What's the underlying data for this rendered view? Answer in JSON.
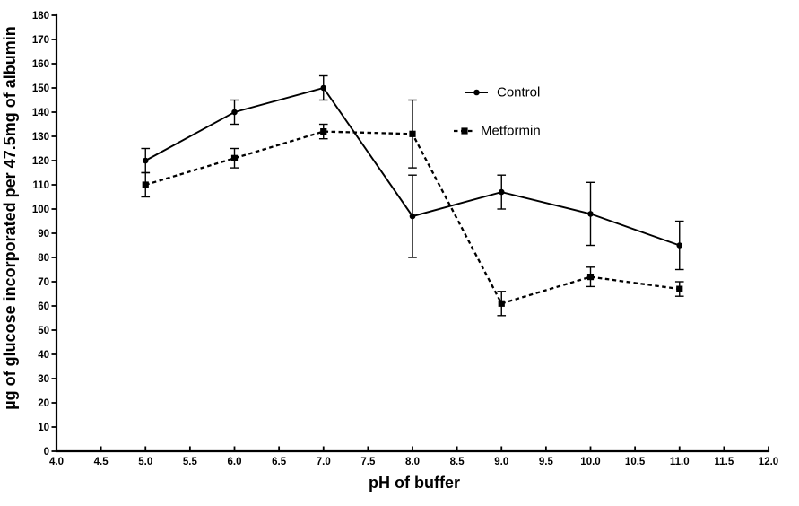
{
  "figure": {
    "background": "#ffffff",
    "ink_color": "#000000"
  },
  "chart_data": {
    "type": "line",
    "title": "",
    "xlabel": "pH of buffer",
    "ylabel": "µg of glucose incorporated per 47.5mg of albumin",
    "xlim": [
      4.0,
      12.0
    ],
    "xtick_step": 0.5,
    "ylim": [
      0,
      180
    ],
    "ytick_step": 10,
    "grid": false,
    "error_bars": true,
    "legend": {
      "position": "upper-center",
      "entries": [
        "Control",
        "Metformin"
      ]
    },
    "x": [
      5.0,
      6.0,
      7.0,
      8.0,
      9.0,
      10.0,
      11.0
    ],
    "series": [
      {
        "name": "Control",
        "marker": "circle",
        "line_style": "solid",
        "values": [
          120,
          140,
          150,
          97,
          107,
          98,
          85
        ],
        "errors": [
          5,
          5,
          5,
          17,
          7,
          13,
          10
        ]
      },
      {
        "name": "Metformin",
        "marker": "square",
        "line_style": "dashed",
        "values": [
          110,
          121,
          132,
          131,
          61,
          72,
          67
        ],
        "errors": [
          5,
          4,
          3,
          14,
          5,
          4,
          3
        ]
      }
    ]
  }
}
